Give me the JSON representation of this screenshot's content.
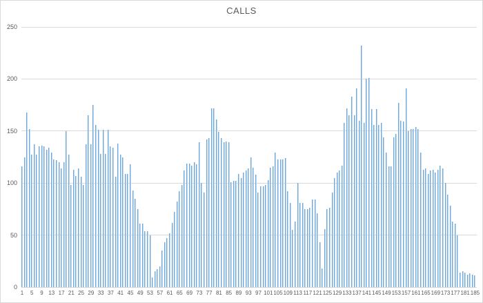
{
  "chart": {
    "title": "CALLS",
    "colors": {
      "bar_fill": "#9dc3e6",
      "bar_edge": "#6fa8dc",
      "gridline": "#d9d9d9",
      "text": "#595959",
      "border": "#d9d9d9",
      "background": "#ffffff"
    }
  },
  "chart_data": {
    "type": "bar",
    "title": "CALLS",
    "xlabel": "",
    "ylabel": "",
    "ylim": [
      0,
      250
    ],
    "grid": true,
    "legend": false,
    "y_ticks": [
      0,
      50,
      100,
      150,
      200,
      250
    ],
    "x_ticks": [
      1,
      5,
      9,
      13,
      17,
      21,
      25,
      29,
      33,
      37,
      41,
      45,
      49,
      53,
      57,
      61,
      65,
      69,
      73,
      77,
      81,
      85,
      89,
      93,
      97,
      101,
      105,
      109,
      113,
      117,
      121,
      125,
      129,
      133,
      137,
      141,
      145,
      149,
      153,
      157,
      161,
      165,
      169,
      173,
      177,
      181,
      185
    ],
    "categories_note": "x = call index 1..185",
    "values": [
      116,
      125,
      168,
      152,
      127,
      137,
      127,
      135,
      136,
      135,
      132,
      134,
      129,
      123,
      122,
      120,
      114,
      120,
      150,
      127,
      98,
      113,
      107,
      114,
      106,
      98,
      137,
      165,
      137,
      175,
      156,
      151,
      128,
      151,
      128,
      151,
      135,
      134,
      106,
      138,
      127,
      125,
      109,
      109,
      118,
      93,
      85,
      75,
      61,
      61,
      54,
      54,
      50,
      9,
      15,
      17,
      20,
      35,
      43,
      47,
      52,
      62,
      72,
      82,
      92,
      98,
      112,
      119,
      119,
      117,
      120,
      118,
      139,
      100,
      91,
      142,
      143,
      172,
      172,
      161,
      149,
      143,
      139,
      140,
      139,
      101,
      102,
      102,
      109,
      105,
      110,
      112,
      114,
      125,
      115,
      108,
      91,
      97,
      97,
      98,
      103,
      115,
      116,
      129,
      123,
      123,
      123,
      124,
      92,
      81,
      55,
      63,
      100,
      81,
      81,
      75,
      75,
      76,
      84,
      84,
      71,
      43,
      18,
      56,
      75,
      76,
      91,
      105,
      110,
      112,
      117,
      158,
      172,
      165,
      183,
      165,
      191,
      160,
      232,
      158,
      200,
      201,
      171,
      156,
      171,
      156,
      158,
      144,
      129,
      116,
      116,
      144,
      147,
      177,
      160,
      159,
      191,
      150,
      152,
      152,
      154,
      152,
      129,
      113,
      114,
      109,
      112,
      113,
      110,
      113,
      117,
      114,
      100,
      89,
      78,
      63,
      61,
      50,
      14,
      15,
      14,
      12,
      13,
      12,
      11
    ]
  }
}
